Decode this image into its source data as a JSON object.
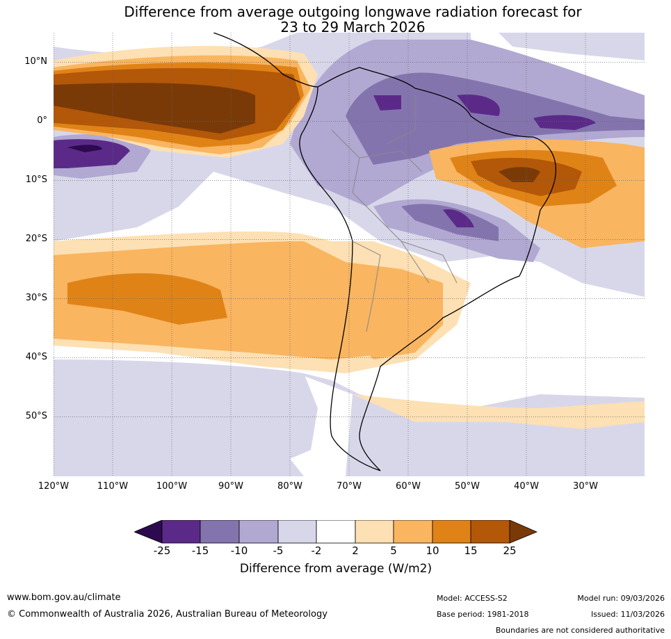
{
  "title": {
    "line1": "Difference from average outgoing longwave radiation forecast for",
    "line2": "23 to 29 March 2026"
  },
  "map": {
    "lat_labels": [
      "10°N",
      "0°",
      "10°S",
      "20°S",
      "30°S",
      "40°S",
      "50°S"
    ],
    "lon_labels": [
      "120°W",
      "110°W",
      "100°W",
      "90°W",
      "80°W",
      "70°W",
      "60°W",
      "50°W",
      "40°W",
      "30°W"
    ]
  },
  "colorbar": {
    "labels": [
      "-25",
      "-15",
      "-10",
      "-5",
      "-2",
      "2",
      "5",
      "10",
      "15",
      "25"
    ],
    "colors": [
      "#2d0a4f",
      "#5b2a89",
      "#8474ae",
      "#b1a9d2",
      "#d8d7ea",
      "#ffffff",
      "#fde0b3",
      "#f9b560",
      "#e08317",
      "#b35708",
      "#7a3a08"
    ],
    "title": "Difference from average (W/m2)"
  },
  "footer": {
    "website": "www.bom.gov.au/climate",
    "copyright": "© Commonwealth of Australia 2026, Australian Bureau of Meteorology",
    "model": "Model: ACCESS-S2",
    "base_period": "Base period: 1981-2018",
    "model_run": "Model run: 09/03/2026",
    "issued": "Issued: 11/03/2026",
    "disclaimer": "Boundaries are not considered authoritative"
  }
}
